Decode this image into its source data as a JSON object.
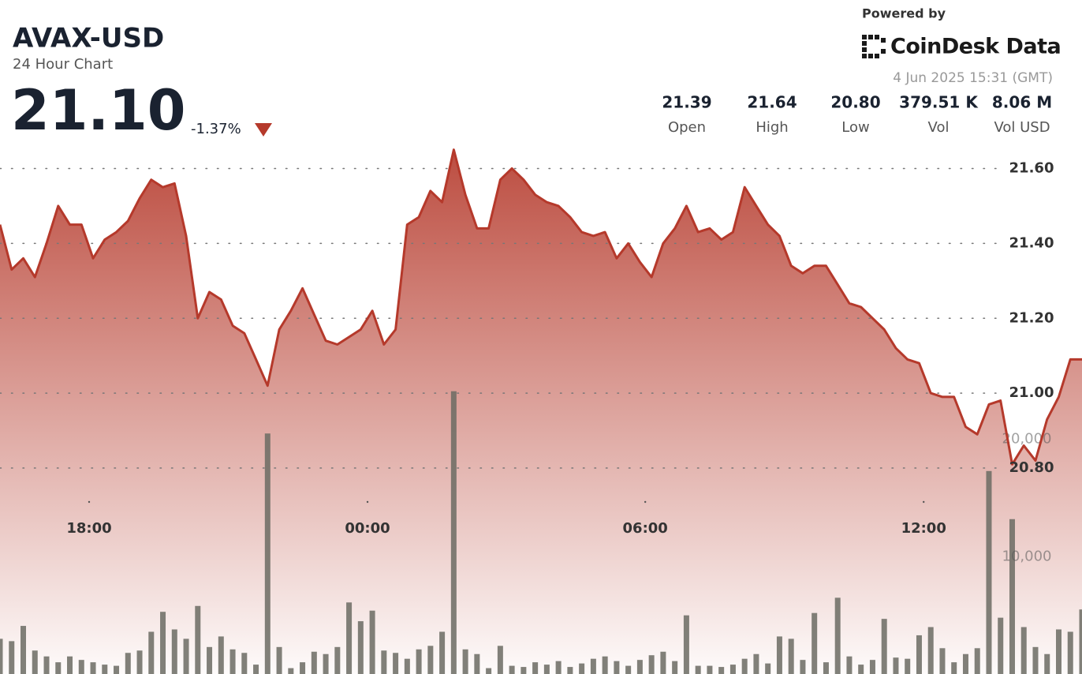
{
  "chart_data": {
    "type": "area",
    "title": "AVAX-USD",
    "subtitle": "24 Hour Chart",
    "last_price": "21.10",
    "change": "-1.37%",
    "powered_by": "Powered by",
    "brand": "CoinDesk Data",
    "timestamp": "4 Jun 2025 15:31 (GMT)",
    "stats": [
      {
        "value": "21.39",
        "label": "Open"
      },
      {
        "value": "21.64",
        "label": "High"
      },
      {
        "value": "20.80",
        "label": "Low"
      },
      {
        "value": "379.51 K",
        "label": "Vol"
      },
      {
        "value": "8.06 M",
        "label": "Vol USD"
      }
    ],
    "xlim": [
      0,
      93
    ],
    "xticks": [
      {
        "value": 7.66,
        "label": "18:00"
      },
      {
        "value": 31.59,
        "label": "00:00"
      },
      {
        "value": 55.46,
        "label": "06:00"
      },
      {
        "value": 79.39,
        "label": "12:00"
      }
    ],
    "ylim": [
      20.25,
      21.66
    ],
    "yticks": [
      {
        "value": 20.8,
        "label": "20.80"
      },
      {
        "value": 21.0,
        "label": "21.00"
      },
      {
        "value": 21.2,
        "label": "21.20"
      },
      {
        "value": 21.4,
        "label": "21.40"
      },
      {
        "value": 21.6,
        "label": "21.60"
      }
    ],
    "y2lim": [
      0,
      45000
    ],
    "y2ticks": [
      {
        "value": 10000,
        "label": "10,000"
      },
      {
        "value": 20000,
        "label": "20,000"
      }
    ],
    "grid": true,
    "series": [
      {
        "name": "Price",
        "color": "#b5392b",
        "values": [
          21.45,
          21.33,
          21.36,
          21.31,
          21.4,
          21.5,
          21.45,
          21.45,
          21.36,
          21.41,
          21.43,
          21.46,
          21.52,
          21.57,
          21.55,
          21.56,
          21.42,
          21.2,
          21.27,
          21.25,
          21.18,
          21.16,
          21.09,
          21.02,
          21.17,
          21.22,
          21.28,
          21.21,
          21.14,
          21.13,
          21.15,
          21.17,
          21.22,
          21.13,
          21.17,
          21.45,
          21.47,
          21.54,
          21.51,
          21.65,
          21.53,
          21.44,
          21.44,
          21.57,
          21.6,
          21.57,
          21.53,
          21.51,
          21.5,
          21.47,
          21.43,
          21.42,
          21.43,
          21.36,
          21.4,
          21.35,
          21.31,
          21.4,
          21.44,
          21.5,
          21.43,
          21.44,
          21.41,
          21.43,
          21.55,
          21.5,
          21.45,
          21.42,
          21.34,
          21.32,
          21.34,
          21.34,
          21.29,
          21.24,
          21.23,
          21.2,
          21.17,
          21.12,
          21.09,
          21.08,
          21.0,
          20.99,
          20.99,
          20.91,
          20.89,
          20.97,
          20.98,
          20.81,
          20.86,
          20.82,
          20.93,
          20.99,
          21.09,
          21.09
        ]
      },
      {
        "name": "Volume",
        "color": "#6b6b63",
        "axis": "y2",
        "values": [
          3000,
          2800,
          4100,
          2000,
          1500,
          1000,
          1500,
          1200,
          1000,
          800,
          700,
          1800,
          2000,
          3600,
          5300,
          3800,
          3000,
          5800,
          2300,
          3200,
          2100,
          1800,
          800,
          20500,
          2300,
          500,
          1000,
          1900,
          1700,
          2300,
          6100,
          4500,
          5400,
          2000,
          1800,
          1300,
          2100,
          2400,
          3600,
          24100,
          2100,
          1700,
          500,
          2400,
          700,
          600,
          1000,
          800,
          1100,
          600,
          900,
          1300,
          1500,
          1100,
          700,
          1200,
          1600,
          1900,
          1100,
          5000,
          700,
          700,
          600,
          800,
          1300,
          1700,
          900,
          3200,
          3000,
          1200,
          5200,
          1000,
          6500,
          1500,
          800,
          1200,
          4700,
          1400,
          1300,
          3300,
          4000,
          2200,
          1000,
          1700,
          2200,
          17300,
          4800,
          13200,
          4000,
          2300,
          1700,
          3800,
          3600,
          5500
        ]
      }
    ]
  }
}
